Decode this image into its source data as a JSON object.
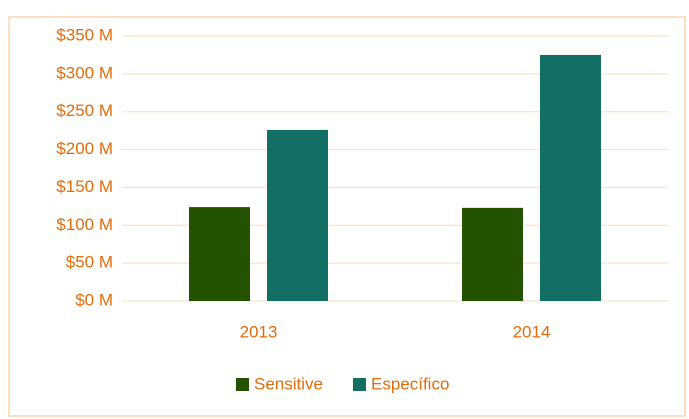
{
  "chart_data": {
    "type": "bar",
    "categories": [
      "2013",
      "2014"
    ],
    "series": [
      {
        "name": "Sensitive",
        "color": "#245200",
        "values": [
          124,
          123
        ]
      },
      {
        "name": "Específico",
        "color": "#136f63",
        "values": [
          226,
          325
        ]
      }
    ],
    "ylim": [
      0,
      350
    ],
    "yticks": [
      {
        "value": 0,
        "label": "$0 M"
      },
      {
        "value": 50,
        "label": "$50 M"
      },
      {
        "value": 100,
        "label": "$100 M"
      },
      {
        "value": 150,
        "label": "$150 M"
      },
      {
        "value": 200,
        "label": "$200 M"
      },
      {
        "value": 250,
        "label": "$250 M"
      },
      {
        "value": 300,
        "label": "$300 M"
      },
      {
        "value": 350,
        "label": "$350 M"
      }
    ],
    "grid": true,
    "legend": "bottom"
  }
}
